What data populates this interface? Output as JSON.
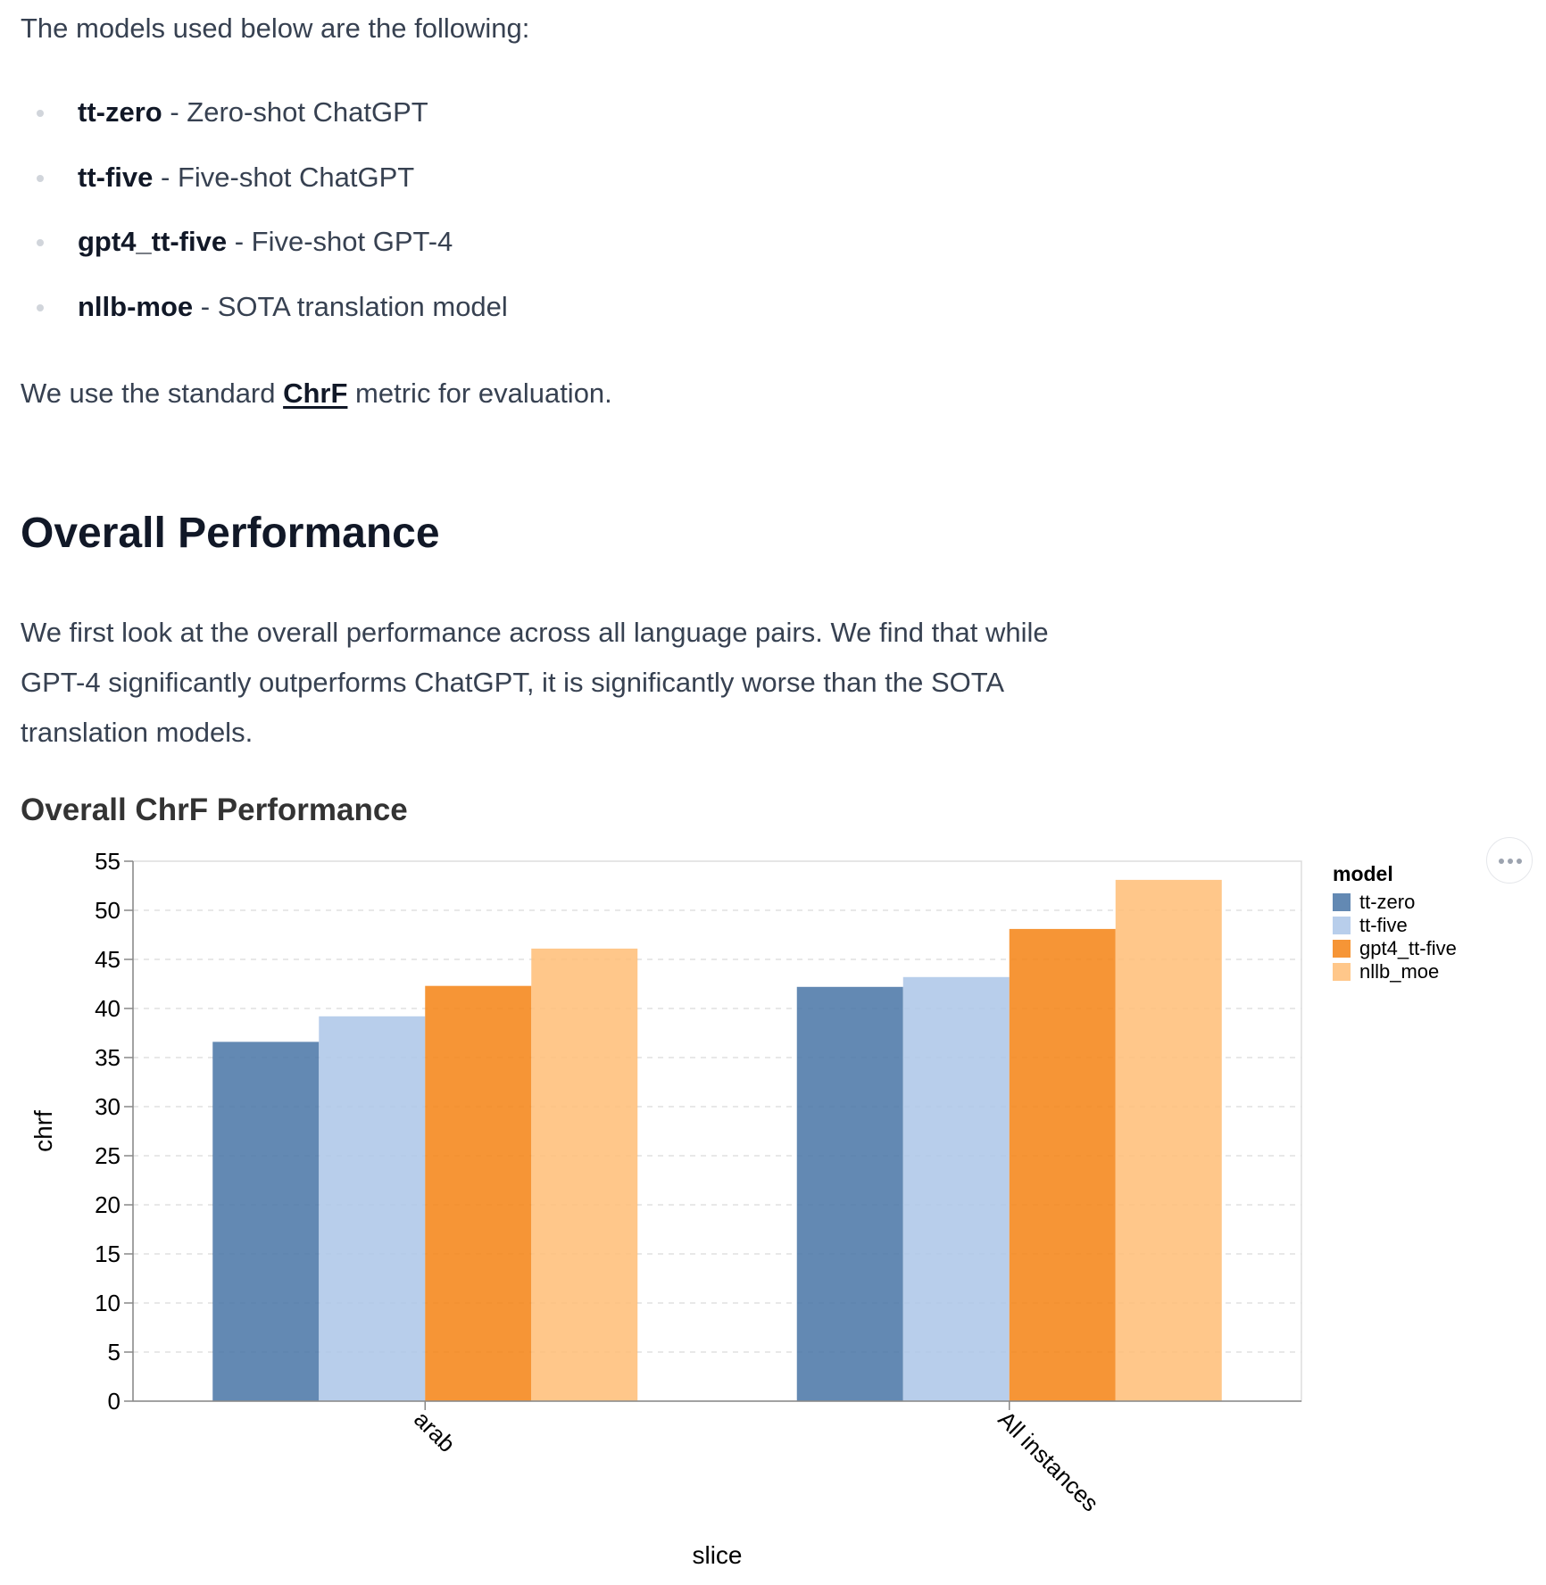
{
  "intro": "The models used below are the following:",
  "models": [
    {
      "name": "tt-zero",
      "desc": " - Zero-shot ChatGPT"
    },
    {
      "name": "tt-five",
      "desc": " - Five-shot ChatGPT"
    },
    {
      "name": "gpt4_tt-five",
      "desc": " - Five-shot GPT-4"
    },
    {
      "name": "nllb-moe",
      "desc": " - SOTA translation model"
    }
  ],
  "metric": {
    "before": "We use the standard ",
    "link": "ChrF",
    "after": " metric for evaluation."
  },
  "section": {
    "heading": "Overall Performance",
    "paragraph": "We first look at the overall performance across all language pairs. We find that while GPT-4 significantly outperforms ChatGPT, it is significantly worse than the SOTA translation models."
  },
  "chart_title": "Overall ChrF Performance",
  "chart_data": {
    "type": "bar",
    "title": "Overall ChrF Performance",
    "xlabel": "slice",
    "ylabel": "chrf",
    "ylim": [
      0,
      55
    ],
    "yticks": [
      0,
      5,
      10,
      15,
      20,
      25,
      30,
      35,
      40,
      45,
      50,
      55
    ],
    "grid": true,
    "legend_title": "model",
    "legend_position": "right",
    "categories": [
      "arab",
      "All instances"
    ],
    "series": [
      {
        "name": "tt-zero",
        "color": "#4c78a8",
        "values": [
          36.6,
          42.2
        ]
      },
      {
        "name": "tt-five",
        "color": "#aec7e8",
        "values": [
          39.2,
          43.2
        ]
      },
      {
        "name": "gpt4_tt-five",
        "color": "#f58518",
        "values": [
          42.3,
          48.1
        ]
      },
      {
        "name": "nllb_moe",
        "color": "#ffbf79",
        "values": [
          46.1,
          53.1
        ]
      }
    ]
  }
}
